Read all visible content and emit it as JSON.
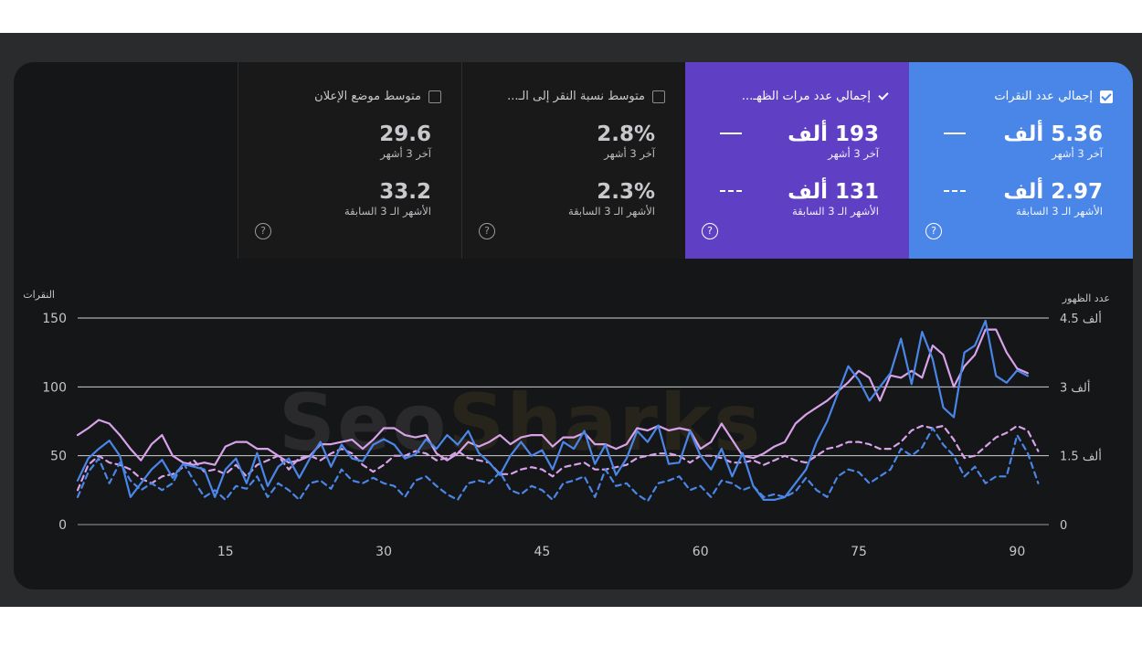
{
  "cards": [
    {
      "id": "clicks",
      "title": "إجمالي عدد النقرات",
      "checked": true,
      "value1": "5.36 ألف",
      "sub1": "آخر 3 أشهر",
      "value2": "2.97 ألف",
      "sub2": "الأشهر الـ 3 السابقة",
      "help": "?"
    },
    {
      "id": "impr",
      "title": "إجمالي عدد مرات الظهـ...",
      "checked": true,
      "value1": "193 ألف",
      "sub1": "آخر 3 أشهر",
      "value2": "131 ألف",
      "sub2": "الأشهر الـ 3 السابقة",
      "help": "?"
    },
    {
      "id": "ctr",
      "title": "متوسط نسبة النقر إلى الـ...",
      "checked": false,
      "value1": "2.8%",
      "sub1": "آخر 3 أشهر",
      "value2": "2.3%",
      "sub2": "الأشهر الـ 3 السابقة",
      "help": "?"
    },
    {
      "id": "pos",
      "title": "متوسط موضع الإعلان",
      "checked": false,
      "value1": "29.6",
      "sub1": "آخر 3 أشهر",
      "value2": "33.2",
      "sub2": "الأشهر الـ 3 السابقة",
      "help": "?"
    }
  ],
  "watermark": {
    "part1": "Seo",
    "part2": "Sharks"
  },
  "chart_data": {
    "type": "line",
    "left_axis": {
      "label": "النقرات",
      "ticks": [
        "0",
        "50",
        "100",
        "150"
      ],
      "range": [
        0,
        150
      ]
    },
    "right_axis": {
      "label": "عدد الظهور",
      "ticks": [
        "0",
        "1.5 ألف",
        "3 ألف",
        "4.5 ألف"
      ],
      "range": [
        0,
        4500
      ]
    },
    "x_ticks": [
      "15",
      "30",
      "45",
      "60",
      "75",
      "90"
    ],
    "x_range": [
      1,
      93
    ],
    "grid": true,
    "colors": {
      "clicks": "#4a86e8",
      "impressions": "#d7a2ea",
      "grid": "#cfd0d2",
      "axis_text": "#c4c6c9"
    },
    "series": [
      {
        "id": "clicks_current",
        "axis": "left",
        "style": "solid",
        "x": [
          1,
          2,
          3,
          4,
          5,
          6,
          7,
          8,
          9,
          10,
          11,
          12,
          13,
          14,
          15,
          16,
          17,
          18,
          19,
          20,
          21,
          22,
          23,
          24,
          25,
          26,
          27,
          28,
          29,
          30,
          31,
          32,
          33,
          34,
          35,
          36,
          37,
          38,
          39,
          40,
          41,
          42,
          43,
          44,
          45,
          46,
          47,
          48,
          49,
          50,
          51,
          52,
          53,
          54,
          55,
          56,
          57,
          58,
          59,
          60,
          61,
          62,
          63,
          64,
          65,
          66,
          67,
          68,
          69,
          70,
          71,
          72,
          73,
          74,
          75,
          76,
          77,
          78,
          79,
          80,
          81,
          82,
          83,
          84,
          85,
          86,
          87,
          88,
          89,
          90,
          91
        ],
        "values": [
          32,
          48,
          55,
          61,
          50,
          20,
          30,
          40,
          47,
          34,
          44,
          42,
          40,
          20,
          40,
          48,
          30,
          52,
          28,
          42,
          48,
          34,
          48,
          60,
          42,
          58,
          48,
          46,
          58,
          62,
          58,
          48,
          51,
          62,
          55,
          65,
          58,
          68,
          52,
          45,
          36,
          50,
          60,
          50,
          54,
          40,
          60,
          55,
          68,
          44,
          58,
          36,
          48,
          68,
          60,
          72,
          44,
          45,
          68,
          50,
          40,
          55,
          35,
          52,
          28,
          18,
          18,
          20,
          30,
          40,
          60,
          75,
          95,
          115,
          105,
          90,
          100,
          110,
          135,
          102,
          140,
          120,
          85,
          78,
          125,
          130,
          148,
          108,
          103,
          112,
          108
        ]
      },
      {
        "id": "impr_current",
        "axis": "right",
        "style": "solid",
        "x": [
          1,
          2,
          3,
          4,
          5,
          6,
          7,
          8,
          9,
          10,
          11,
          12,
          13,
          14,
          15,
          16,
          17,
          18,
          19,
          20,
          21,
          22,
          23,
          24,
          25,
          26,
          27,
          28,
          29,
          30,
          31,
          32,
          33,
          34,
          35,
          36,
          37,
          38,
          39,
          40,
          41,
          42,
          43,
          44,
          45,
          46,
          47,
          48,
          49,
          50,
          51,
          52,
          53,
          54,
          55,
          56,
          57,
          58,
          59,
          60,
          61,
          62,
          63,
          64,
          65,
          66,
          67,
          68,
          69,
          70,
          71,
          72,
          73,
          74,
          75,
          76,
          77,
          78,
          79,
          80,
          81,
          82,
          83,
          84,
          85,
          86,
          87,
          88,
          89,
          90,
          91
        ],
        "values": [
          1950,
          2100,
          2280,
          2200,
          1950,
          1650,
          1400,
          1750,
          1950,
          1500,
          1350,
          1300,
          1350,
          1300,
          1700,
          1800,
          1800,
          1650,
          1650,
          1500,
          1350,
          1400,
          1500,
          1750,
          1750,
          1800,
          1850,
          1650,
          1850,
          2100,
          2100,
          1950,
          1900,
          1950,
          1550,
          1400,
          1550,
          1800,
          1700,
          1800,
          1950,
          1750,
          1900,
          1950,
          1950,
          1700,
          1900,
          1900,
          2000,
          1750,
          1750,
          1650,
          1750,
          2100,
          2050,
          2150,
          2050,
          2100,
          2050,
          1650,
          1800,
          2200,
          1850,
          1500,
          1450,
          1550,
          1700,
          1800,
          2200,
          2400,
          2550,
          2700,
          2900,
          3100,
          3350,
          3200,
          2700,
          3250,
          3200,
          3350,
          3200,
          3900,
          3700,
          3000,
          3450,
          3700,
          4250,
          4250,
          3750,
          3400,
          3300
        ]
      },
      {
        "id": "clicks_previous",
        "axis": "left",
        "style": "dashed",
        "x": [
          1,
          2,
          3,
          4,
          5,
          6,
          7,
          8,
          9,
          10,
          11,
          12,
          13,
          14,
          15,
          16,
          17,
          18,
          19,
          20,
          21,
          22,
          23,
          24,
          25,
          26,
          27,
          28,
          29,
          30,
          31,
          32,
          33,
          34,
          35,
          36,
          37,
          38,
          39,
          40,
          41,
          42,
          43,
          44,
          45,
          46,
          47,
          48,
          49,
          50,
          51,
          52,
          53,
          54,
          55,
          56,
          57,
          58,
          59,
          60,
          61,
          62,
          63,
          64,
          65,
          66,
          67,
          68,
          69,
          70,
          71,
          72,
          73,
          74,
          75,
          76,
          77,
          78,
          79,
          80,
          81,
          82,
          83,
          84,
          85,
          86,
          87,
          88,
          89,
          90,
          91,
          92
        ],
        "values": [
          20,
          38,
          48,
          30,
          45,
          32,
          25,
          30,
          25,
          30,
          45,
          32,
          20,
          25,
          18,
          28,
          26,
          35,
          20,
          30,
          25,
          18,
          30,
          32,
          26,
          40,
          32,
          30,
          34,
          30,
          28,
          20,
          32,
          35,
          28,
          22,
          18,
          30,
          32,
          30,
          38,
          25,
          22,
          28,
          25,
          18,
          30,
          32,
          35,
          20,
          40,
          28,
          30,
          22,
          17,
          30,
          32,
          35,
          25,
          28,
          20,
          32,
          30,
          25,
          28,
          20,
          22,
          20,
          24,
          34,
          25,
          20,
          35,
          40,
          38,
          30,
          35,
          40,
          55,
          50,
          56,
          70,
          58,
          50,
          35,
          42,
          30,
          35,
          35,
          65,
          52,
          30
        ]
      },
      {
        "id": "impr_previous",
        "axis": "right",
        "style": "dashed",
        "x": [
          1,
          2,
          3,
          4,
          5,
          6,
          7,
          8,
          9,
          10,
          11,
          12,
          13,
          14,
          15,
          16,
          17,
          18,
          19,
          20,
          21,
          22,
          23,
          24,
          25,
          26,
          27,
          28,
          29,
          30,
          31,
          32,
          33,
          34,
          35,
          36,
          37,
          38,
          39,
          40,
          41,
          42,
          43,
          44,
          45,
          46,
          47,
          48,
          49,
          50,
          51,
          52,
          53,
          54,
          55,
          56,
          57,
          58,
          59,
          60,
          61,
          62,
          63,
          64,
          65,
          66,
          67,
          68,
          69,
          70,
          71,
          72,
          73,
          74,
          75,
          76,
          77,
          78,
          79,
          80,
          81,
          82,
          83,
          84,
          85,
          86,
          87,
          88,
          89,
          90,
          91,
          92
        ],
        "values": [
          750,
          1300,
          1500,
          1350,
          1300,
          1200,
          1000,
          900,
          1050,
          1100,
          1250,
          1400,
          1150,
          1200,
          1100,
          1300,
          1050,
          1300,
          1400,
          1500,
          1200,
          1450,
          1500,
          1400,
          1550,
          1650,
          1550,
          1300,
          1150,
          1300,
          1500,
          1500,
          1600,
          1550,
          1400,
          1450,
          1600,
          1450,
          1400,
          1350,
          1100,
          1100,
          1200,
          1250,
          1200,
          1050,
          1250,
          1300,
          1350,
          1200,
          1200,
          1250,
          1300,
          1450,
          1500,
          1550,
          1550,
          1500,
          1350,
          1500,
          1500,
          1450,
          1350,
          1350,
          1400,
          1300,
          1400,
          1500,
          1400,
          1350,
          1500,
          1650,
          1700,
          1800,
          1800,
          1750,
          1650,
          1650,
          1800,
          2050,
          2150,
          2100,
          2150,
          1850,
          1450,
          1500,
          1700,
          1900,
          2000,
          2150,
          2050,
          1600
        ]
      }
    ]
  }
}
